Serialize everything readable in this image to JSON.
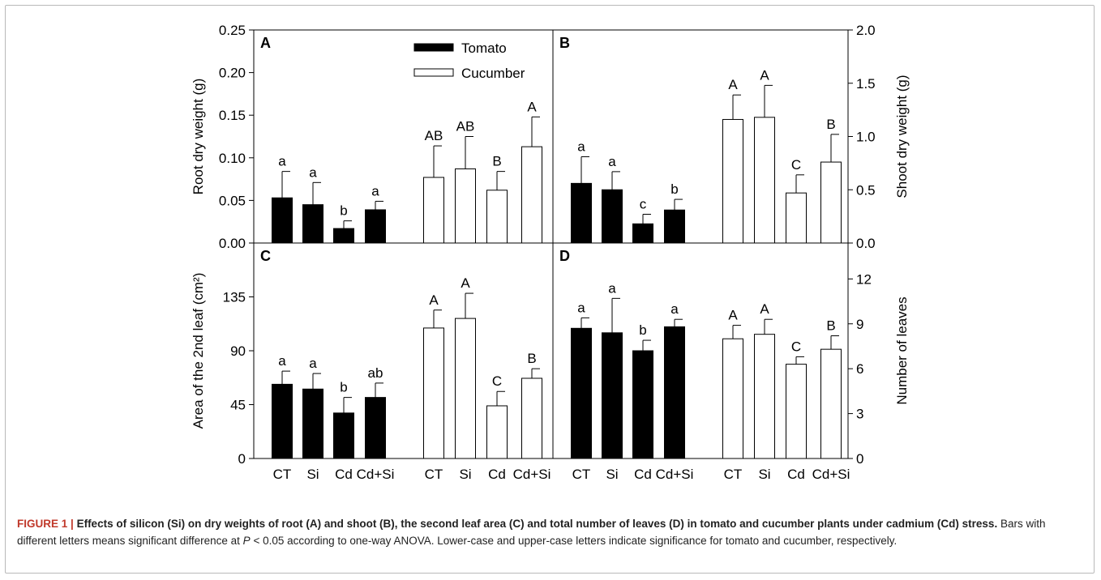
{
  "figure": {
    "caption_label": "FIGURE 1 |",
    "caption_title": "Effects of silicon (Si) on dry weights of root (A) and shoot (B), the second leaf area (C) and total number of leaves (D) in tomato and cucumber plants under cadmium (Cd) stress.",
    "caption_text_1": "Bars with different letters means significant difference at",
    "caption_p": "P",
    "caption_text_2": "< 0.05 according to one-way ANOVA. Lower-case and upper-case letters indicate significance for tomato and cucumber, respectively."
  },
  "legend": {
    "tomato_label": "Tomato",
    "cucumber_label": "Cucumber",
    "position": "top"
  },
  "colors": {
    "tomato": "#000000",
    "cucumber": "#ffffff",
    "axis": "#000000"
  },
  "chart_data": [
    {
      "panel": "A",
      "type": "bar",
      "ylabel": "Root dry weight  (g)",
      "ylim": [
        0,
        0.25
      ],
      "yticks": [
        "0.00",
        "0.05",
        "0.10",
        "0.15",
        "0.20",
        "0.25"
      ],
      "categories": [
        "CT",
        "Si",
        "Cd",
        "Cd+Si"
      ],
      "series": [
        {
          "name": "Tomato",
          "values": [
            0.053,
            0.045,
            0.017,
            0.039
          ],
          "errors": [
            0.031,
            0.026,
            0.009,
            0.01
          ],
          "letters": [
            "a",
            "a",
            "b",
            "a"
          ]
        },
        {
          "name": "Cucumber",
          "values": [
            0.077,
            0.087,
            0.062,
            0.113
          ],
          "errors": [
            0.037,
            0.038,
            0.022,
            0.035
          ],
          "letters": [
            "AB",
            "AB",
            "B",
            "A"
          ]
        }
      ]
    },
    {
      "panel": "B",
      "type": "bar",
      "ylabel": "Shoot dry weight  (g)",
      "ylim": [
        0,
        2.0
      ],
      "yticks": [
        "0.0",
        "0.5",
        "1.0",
        "1.5",
        "2.0"
      ],
      "categories": [
        "CT",
        "Si",
        "Cd",
        "Cd+Si"
      ],
      "series": [
        {
          "name": "Tomato",
          "values": [
            0.56,
            0.5,
            0.18,
            0.31
          ],
          "errors": [
            0.25,
            0.17,
            0.09,
            0.1
          ],
          "letters": [
            "a",
            "a",
            "c",
            "b"
          ]
        },
        {
          "name": "Cucumber",
          "values": [
            1.16,
            1.18,
            0.47,
            0.76
          ],
          "errors": [
            0.23,
            0.3,
            0.17,
            0.26
          ],
          "letters": [
            "A",
            "A",
            "C",
            "B"
          ]
        }
      ]
    },
    {
      "panel": "C",
      "type": "bar",
      "ylabel": "Area of the 2nd leaf (cm²)",
      "ylim": [
        0,
        180
      ],
      "yticks": [
        "0",
        "45",
        "90",
        "135"
      ],
      "categories": [
        "CT",
        "Si",
        "Cd",
        "Cd+Si"
      ],
      "series": [
        {
          "name": "Tomato",
          "values": [
            62,
            58,
            38,
            51
          ],
          "errors": [
            11,
            13,
            13,
            12
          ],
          "letters": [
            "a",
            "a",
            "b",
            "ab"
          ]
        },
        {
          "name": "Cucumber",
          "values": [
            109,
            117,
            44,
            67
          ],
          "errors": [
            15,
            21,
            12,
            8
          ],
          "letters": [
            "A",
            "A",
            "C",
            "B"
          ]
        }
      ]
    },
    {
      "panel": "D",
      "type": "bar",
      "ylabel": "Number of leaves",
      "ylim": [
        0,
        14.4
      ],
      "yticks": [
        "0",
        "3",
        "6",
        "9",
        "12"
      ],
      "categories": [
        "CT",
        "Si",
        "Cd",
        "Cd+Si"
      ],
      "series": [
        {
          "name": "Tomato",
          "values": [
            8.7,
            8.4,
            7.2,
            8.8
          ],
          "errors": [
            0.7,
            2.3,
            0.7,
            0.5
          ],
          "letters": [
            "a",
            "a",
            "b",
            "a"
          ]
        },
        {
          "name": "Cucumber",
          "values": [
            8.0,
            8.3,
            6.3,
            7.3
          ],
          "errors": [
            0.9,
            1.0,
            0.5,
            0.9
          ],
          "letters": [
            "A",
            "A",
            "C",
            "B"
          ]
        }
      ]
    }
  ]
}
